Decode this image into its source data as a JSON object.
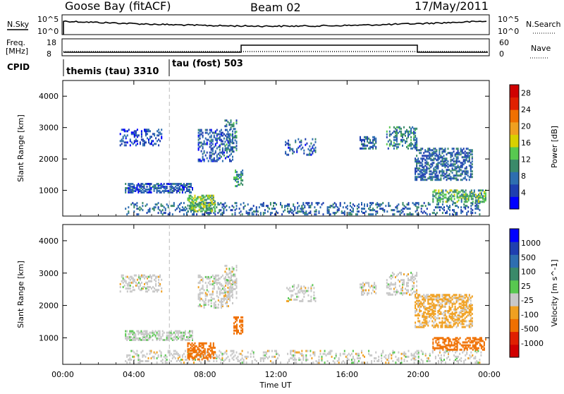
{
  "header": {
    "station": "Goose Bay (fitACF)",
    "beam": "Beam 02",
    "date": "17/May/2011"
  },
  "summary_panels": {
    "nsky_label": "N.Sky",
    "nsky_ticks": [
      "10^5",
      "10^0"
    ],
    "nsearch_label": "N.Search",
    "nsearch_ticks": [
      "10^5",
      "10^0"
    ],
    "freq_label_line1": "Freq.",
    "freq_label_line2": "[MHz]",
    "freq_ticks": [
      "18",
      "8"
    ],
    "nave_label": "Nave",
    "nave_ticks": [
      "60",
      "0"
    ],
    "cpid_label": "CPID",
    "cpid_segments": [
      {
        "label": "themis (tau) 3310",
        "start_hour": 0
      },
      {
        "label": "tau (fost) 503",
        "start_hour": 6
      }
    ]
  },
  "colors": {
    "power_scale": [
      "#0000ff",
      "#1f3fb0",
      "#2e6eb0",
      "#3a8a6a",
      "#58c850",
      "#d8d000",
      "#f0a020",
      "#f07000",
      "#e02000",
      "#d00000"
    ],
    "velocity_scale": [
      "#0000ff",
      "#1f3fb0",
      "#2e6eb0",
      "#3a8a6a",
      "#58c850",
      "#c8c8c8",
      "#f0a020",
      "#f07000",
      "#e02000",
      "#d00000"
    ]
  },
  "chart_data": [
    {
      "type": "heatmap",
      "title": "",
      "xlabel": "Time UT",
      "ylabel": "Slant Range [km]",
      "x_ticks": [
        "00:00",
        "04:00",
        "08:00",
        "12:00",
        "16:00",
        "20:00",
        "00:00"
      ],
      "x_range_hours": [
        0,
        24
      ],
      "y_ticks": [
        "1000",
        "2000",
        "3000",
        "4000"
      ],
      "y_range_km": [
        180,
        4500
      ],
      "colorbar_label": "Power [dB]",
      "colorbar_ticks": [
        "4",
        "8",
        "12",
        "16",
        "20",
        "24",
        "28"
      ],
      "colorbar_range": [
        0,
        30
      ],
      "scatter_regions": [
        {
          "t0": 3.2,
          "t1": 5.6,
          "r0": 2400,
          "r1": 2900,
          "value": 5,
          "density": 0.35
        },
        {
          "t0": 3.5,
          "t1": 7.3,
          "r0": 900,
          "r1": 1200,
          "value": 6,
          "density": 0.6
        },
        {
          "t0": 7.6,
          "t1": 9.6,
          "r0": 1900,
          "r1": 2900,
          "value": 6,
          "density": 0.35
        },
        {
          "t0": 9.1,
          "t1": 9.8,
          "r0": 2200,
          "r1": 3200,
          "value": 9,
          "density": 0.35
        },
        {
          "t0": 9.6,
          "t1": 10.1,
          "r0": 1100,
          "r1": 1600,
          "value": 10,
          "density": 0.5
        },
        {
          "t0": 3.5,
          "t1": 23.5,
          "r0": 200,
          "r1": 600,
          "value": 7,
          "density": 0.25
        },
        {
          "t0": 7.0,
          "t1": 8.6,
          "r0": 300,
          "r1": 800,
          "value": 13,
          "density": 0.5
        },
        {
          "t0": 12.5,
          "t1": 14.2,
          "r0": 2100,
          "r1": 2600,
          "value": 6,
          "density": 0.25
        },
        {
          "t0": 16.7,
          "t1": 17.6,
          "r0": 2300,
          "r1": 2700,
          "value": 7,
          "density": 0.35
        },
        {
          "t0": 18.2,
          "t1": 19.9,
          "r0": 2300,
          "r1": 3000,
          "value": 9,
          "density": 0.35
        },
        {
          "t0": 19.8,
          "t1": 23.0,
          "r0": 1300,
          "r1": 2300,
          "value": 7,
          "density": 0.5
        },
        {
          "t0": 20.8,
          "t1": 23.8,
          "r0": 600,
          "r1": 1000,
          "value": 12,
          "density": 0.5
        }
      ]
    },
    {
      "type": "heatmap",
      "title": "",
      "xlabel": "Time UT",
      "ylabel": "Slant Range [km]",
      "x_ticks": [
        "00:00",
        "04:00",
        "08:00",
        "12:00",
        "16:00",
        "20:00",
        "00:00"
      ],
      "x_range_hours": [
        0,
        24
      ],
      "y_ticks": [
        "1000",
        "2000",
        "3000",
        "4000"
      ],
      "y_range_km": [
        180,
        4500
      ],
      "colorbar_label": "Velocity [m s^-1]",
      "colorbar_ticks": [
        "1000",
        "500",
        "100",
        "25",
        "-25",
        "-100",
        "-500",
        "-1000"
      ],
      "colorbar_range": [
        -1200,
        1200
      ],
      "scatter_regions": [
        {
          "t0": 3.2,
          "t1": 5.6,
          "r0": 2400,
          "r1": 2900,
          "value": 0,
          "density": 0.35
        },
        {
          "t0": 3.5,
          "t1": 7.3,
          "r0": 900,
          "r1": 1200,
          "value": 10,
          "density": 0.6
        },
        {
          "t0": 7.6,
          "t1": 9.6,
          "r0": 1900,
          "r1": 2900,
          "value": 0,
          "density": 0.35
        },
        {
          "t0": 9.1,
          "t1": 9.8,
          "r0": 2200,
          "r1": 3200,
          "value": 0,
          "density": 0.35
        },
        {
          "t0": 9.6,
          "t1": 10.1,
          "r0": 1100,
          "r1": 1600,
          "value": -200,
          "density": 0.5
        },
        {
          "t0": 3.5,
          "t1": 23.5,
          "r0": 200,
          "r1": 600,
          "value": 0,
          "density": 0.25
        },
        {
          "t0": 7.0,
          "t1": 8.6,
          "r0": 300,
          "r1": 800,
          "value": -150,
          "density": 0.5
        },
        {
          "t0": 12.5,
          "t1": 14.2,
          "r0": 2100,
          "r1": 2600,
          "value": 0,
          "density": 0.25
        },
        {
          "t0": 16.7,
          "t1": 17.6,
          "r0": 2300,
          "r1": 2700,
          "value": 0,
          "density": 0.35
        },
        {
          "t0": 18.2,
          "t1": 19.9,
          "r0": 2300,
          "r1": 3000,
          "value": 0,
          "density": 0.35
        },
        {
          "t0": 19.8,
          "t1": 23.0,
          "r0": 1300,
          "r1": 2300,
          "value": -40,
          "density": 0.5
        },
        {
          "t0": 20.8,
          "t1": 23.8,
          "r0": 600,
          "r1": 1000,
          "value": -200,
          "density": 0.5
        }
      ]
    }
  ]
}
